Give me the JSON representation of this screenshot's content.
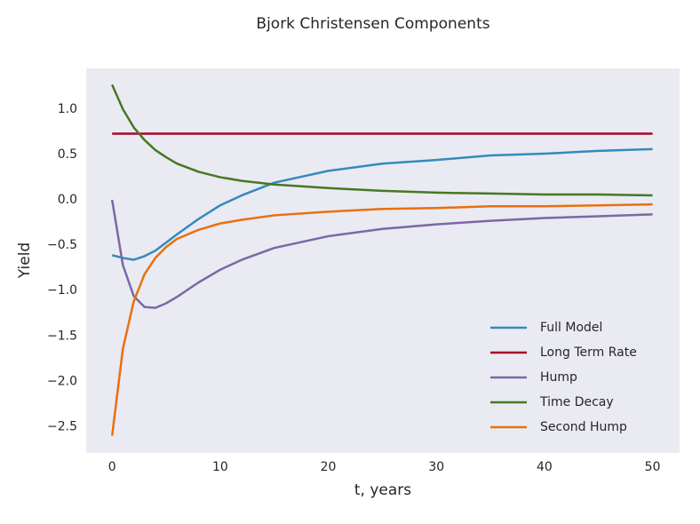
{
  "chart_data": {
    "type": "line",
    "title": "Bjork Christensen Components",
    "x_label": "t, years",
    "y_label": "Yield",
    "x": [
      0,
      1,
      2,
      3,
      4,
      5,
      6,
      8,
      10,
      12,
      15,
      20,
      25,
      30,
      35,
      40,
      45,
      50
    ],
    "series": [
      {
        "name": "Full Model",
        "color": "#348abd",
        "values": [
          -0.61,
          -0.64,
          -0.66,
          -0.62,
          -0.56,
          -0.47,
          -0.38,
          -0.21,
          -0.06,
          0.05,
          0.19,
          0.32,
          0.4,
          0.44,
          0.49,
          0.51,
          0.54,
          0.56
        ]
      },
      {
        "name": "Long Term Rate",
        "color": "#a60628",
        "values": [
          0.73,
          0.73,
          0.73,
          0.73,
          0.73,
          0.73,
          0.73,
          0.73,
          0.73,
          0.73,
          0.73,
          0.73,
          0.73,
          0.73,
          0.73,
          0.73,
          0.73,
          0.73
        ]
      },
      {
        "name": "Hump",
        "color": "#7a68a6",
        "values": [
          0,
          -0.72,
          -1.06,
          -1.18,
          -1.19,
          -1.14,
          -1.07,
          -0.91,
          -0.77,
          -0.66,
          -0.53,
          -0.4,
          -0.32,
          -0.27,
          -0.23,
          -0.2,
          -0.18,
          -0.16
        ]
      },
      {
        "name": "Time Decay",
        "color": "#467821",
        "values": [
          1.27,
          1.0,
          0.8,
          0.66,
          0.55,
          0.47,
          0.4,
          0.31,
          0.25,
          0.21,
          0.17,
          0.13,
          0.1,
          0.08,
          0.07,
          0.06,
          0.06,
          0.05
        ]
      },
      {
        "name": "Second Hump",
        "color": "#e8700f",
        "values": [
          -2.6,
          -1.64,
          -1.12,
          -0.82,
          -0.64,
          -0.52,
          -0.43,
          -0.33,
          -0.26,
          -0.22,
          -0.17,
          -0.13,
          -0.1,
          -0.09,
          -0.07,
          -0.07,
          -0.06,
          -0.05
        ]
      }
    ],
    "xlim": [
      -2.4,
      52.5
    ],
    "ylim": [
      -2.79,
      1.45
    ],
    "xticks": [
      0,
      10,
      20,
      30,
      40,
      50
    ],
    "yticks": [
      {
        "value": 1,
        "label": "1.0"
      },
      0.5,
      {
        "value": 0,
        "label": "0.0"
      },
      {
        "value": -0.5,
        "label": "−0.5"
      },
      {
        "value": -1,
        "label": "−1.0"
      },
      {
        "value": -1.5,
        "label": "−1.5"
      },
      {
        "value": -2,
        "label": "−2.0"
      },
      {
        "value": -2.5,
        "label": "−2.5"
      }
    ],
    "grid": false,
    "legend_position": "lower right"
  }
}
